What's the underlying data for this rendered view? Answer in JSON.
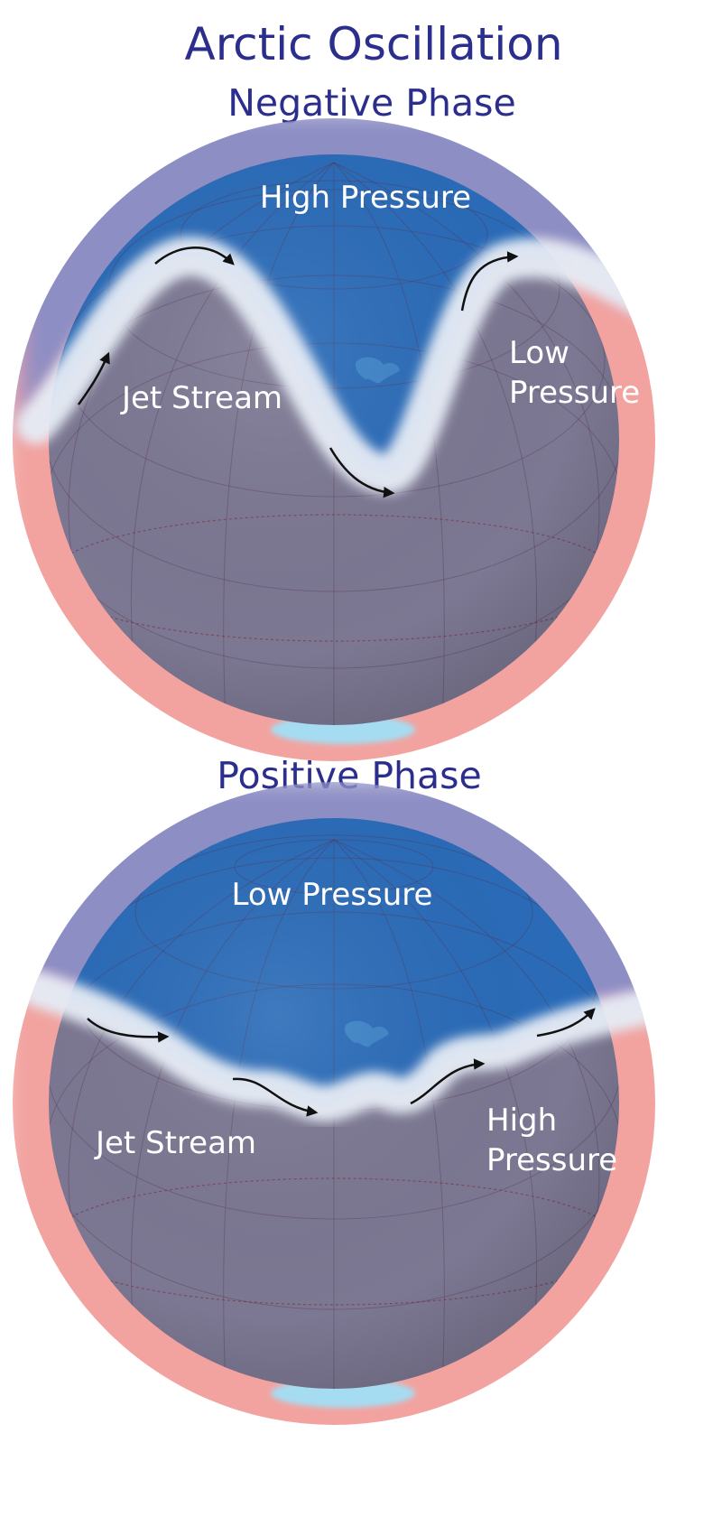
{
  "title": "Arctic Oscillation",
  "colors": {
    "heading": "#2b2e8c",
    "polar_air": "#2a6bb8",
    "mid_latitude_air": "#7c7893",
    "outer_polar_band": "#8c8ec4",
    "outer_warm_band": "#f2a3a0",
    "jet_stream": "#e6ecf5",
    "label_text": "#ffffff",
    "arrow": "#111111"
  },
  "panels": {
    "negative": {
      "heading": "Negative Phase",
      "labels": {
        "pressure_top": "High Pressure",
        "jet_stream": "Jet Stream",
        "pressure_side_line1": "Low",
        "pressure_side_line2": "Pressure"
      }
    },
    "positive": {
      "heading": "Positive Phase",
      "labels": {
        "pressure_top": "Low Pressure",
        "jet_stream": "Jet Stream",
        "pressure_side_line1": "High",
        "pressure_side_line2": "Pressure"
      }
    }
  }
}
